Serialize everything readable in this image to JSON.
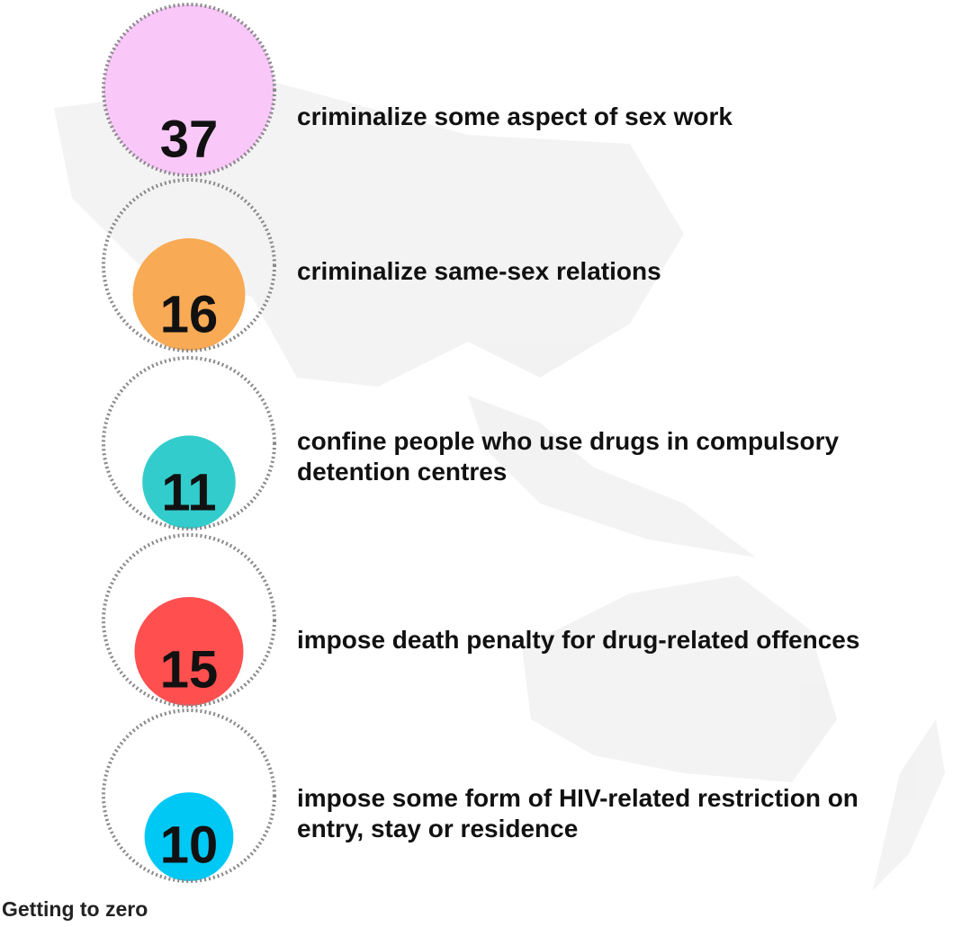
{
  "chart_data": {
    "type": "proportional-circle",
    "categories": [
      "criminalize some aspect of sex work",
      "criminalize same-sex relations",
      "confine people who use drugs in compulsory detention centres",
      "impose death penalty for drug-related offences",
      "impose some form of HIV-related restriction on entry, stay or residence"
    ],
    "values": [
      37,
      16,
      11,
      15,
      10
    ],
    "colors": [
      "#f9c8f9",
      "#f9aa55",
      "#33cccc",
      "#ff4f4f",
      "#00c8f5"
    ],
    "footer": "Getting to zero"
  }
}
